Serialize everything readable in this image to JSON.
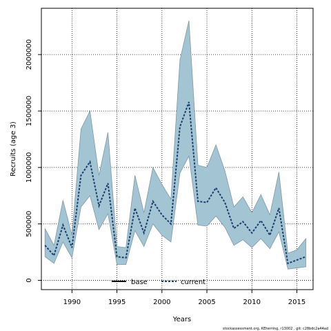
{
  "chart_data": {
    "type": "line",
    "title": "",
    "xlabel": "Years",
    "ylabel": "Recruits (age 3)",
    "xlim": [
      1986.6,
      2016.8
    ],
    "ylim": [
      -82000,
      2410000
    ],
    "x_ticks": [
      1990,
      1995,
      2000,
      2005,
      2010,
      2015
    ],
    "x_tick_labels": [
      "1990",
      "1995",
      "2000",
      "2005",
      "2010",
      "2015"
    ],
    "y_ticks": [
      0,
      500000,
      1000000,
      1500000,
      2000000
    ],
    "y_tick_labels": [
      "0",
      "500000",
      "1000000",
      "1500000",
      "2000000"
    ],
    "grid": true,
    "legend_position": "bottom-center",
    "legend": [
      {
        "name": "base",
        "style": "solid",
        "color": "#000000"
      },
      {
        "name": "current",
        "style": "dashed",
        "color": "#1b3d6e"
      }
    ],
    "footnote": "stockassessment.org, KEherring, r13002 , git: c28bdc2a44ad",
    "band": {
      "color": "#a3c4d3",
      "edge_color": "#7f98a5",
      "x": [
        1987,
        1988,
        1989,
        1990,
        1991,
        1992,
        1993,
        1994,
        1995,
        1996,
        1997,
        1998,
        1999,
        2000,
        2001,
        2002,
        2003,
        2004,
        2005,
        2006,
        2007,
        2008,
        2009,
        2010,
        2011,
        2012,
        2013,
        2014,
        2015,
        2016
      ],
      "upper": [
        460000,
        310000,
        710000,
        400000,
        1340000,
        1500000,
        930000,
        1310000,
        300000,
        290000,
        930000,
        600000,
        1000000,
        850000,
        720000,
        1950000,
        2300000,
        1020000,
        1000000,
        1200000,
        970000,
        650000,
        740000,
        600000,
        760000,
        580000,
        960000,
        240000,
        270000,
        370000
      ],
      "lower": [
        210000,
        150000,
        340000,
        200000,
        650000,
        750000,
        450000,
        590000,
        140000,
        140000,
        440000,
        300000,
        500000,
        400000,
        340000,
        950000,
        1100000,
        490000,
        480000,
        570000,
        470000,
        310000,
        360000,
        290000,
        370000,
        280000,
        430000,
        100000,
        110000,
        120000
      ]
    },
    "series": [
      {
        "name": "current",
        "style": "dashed",
        "color": "#1b3d6e",
        "x": [
          1987,
          1988,
          1989,
          1990,
          1991,
          1992,
          1993,
          1994,
          1995,
          1996,
          1997,
          1998,
          1999,
          2000,
          2001,
          2002,
          2003,
          2004,
          2005,
          2006,
          2007,
          2008,
          2009,
          2010,
          2011,
          2012,
          2013,
          2014,
          2015,
          2016
        ],
        "values": [
          310000,
          220000,
          490000,
          290000,
          930000,
          1050000,
          660000,
          860000,
          210000,
          200000,
          640000,
          420000,
          700000,
          580000,
          500000,
          1360000,
          1580000,
          700000,
          690000,
          820000,
          690000,
          460000,
          520000,
          420000,
          530000,
          400000,
          640000,
          150000,
          180000,
          210000
        ]
      }
    ]
  }
}
